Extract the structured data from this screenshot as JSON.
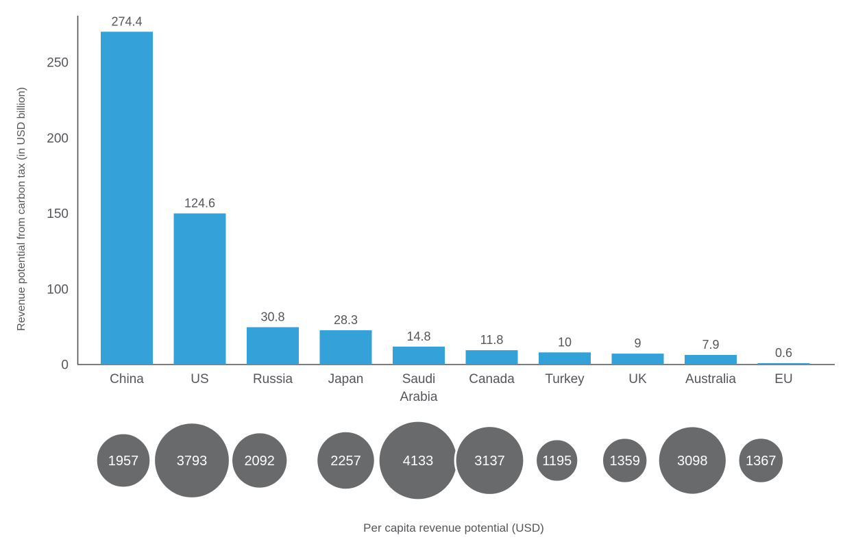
{
  "chart_data": {
    "type": "bar",
    "categories": [
      "China",
      "US",
      "Russia",
      "Japan",
      "Saudi Arabia",
      "Canada",
      "Turkey",
      "UK",
      "Australia",
      "EU"
    ],
    "series": [
      {
        "name": "Revenue potential from carbon tax (in USD billion)",
        "type": "bar",
        "values": [
          274.4,
          124.6,
          30.8,
          28.3,
          14.8,
          11.8,
          10,
          9,
          7.9,
          0.6
        ],
        "labels": [
          "274.4",
          "124.6",
          "30.8",
          "28.3",
          "14.8",
          "11.8",
          "10",
          "9",
          "7.9",
          "0.6"
        ]
      },
      {
        "name": "Per capita revenue potential (USD)",
        "type": "bubble",
        "values": [
          1957,
          3793,
          2092,
          2257,
          4133,
          3137,
          1195,
          1359,
          3098,
          1367
        ],
        "labels": [
          "1957",
          "3793",
          "2092",
          "2257",
          "4133",
          "3137",
          "1195",
          "1359",
          "3098",
          "1367"
        ]
      }
    ],
    "ylabel": "Revenue potential from carbon tax (in USD billion)",
    "xlabel": "",
    "bubble_caption": "Per capita revenue potential (USD)",
    "yticks": [
      0,
      100,
      150,
      200,
      250
    ],
    "ylim": [
      0,
      280
    ],
    "grid": false,
    "legend": "none",
    "colors": {
      "bar": "#34a2d8",
      "bubble_fill": "#696a6c",
      "bubble_stroke": "#ffffff",
      "text": "#54565a",
      "axis_line": "#4f5156",
      "bubble_text": "#ffffff"
    }
  }
}
